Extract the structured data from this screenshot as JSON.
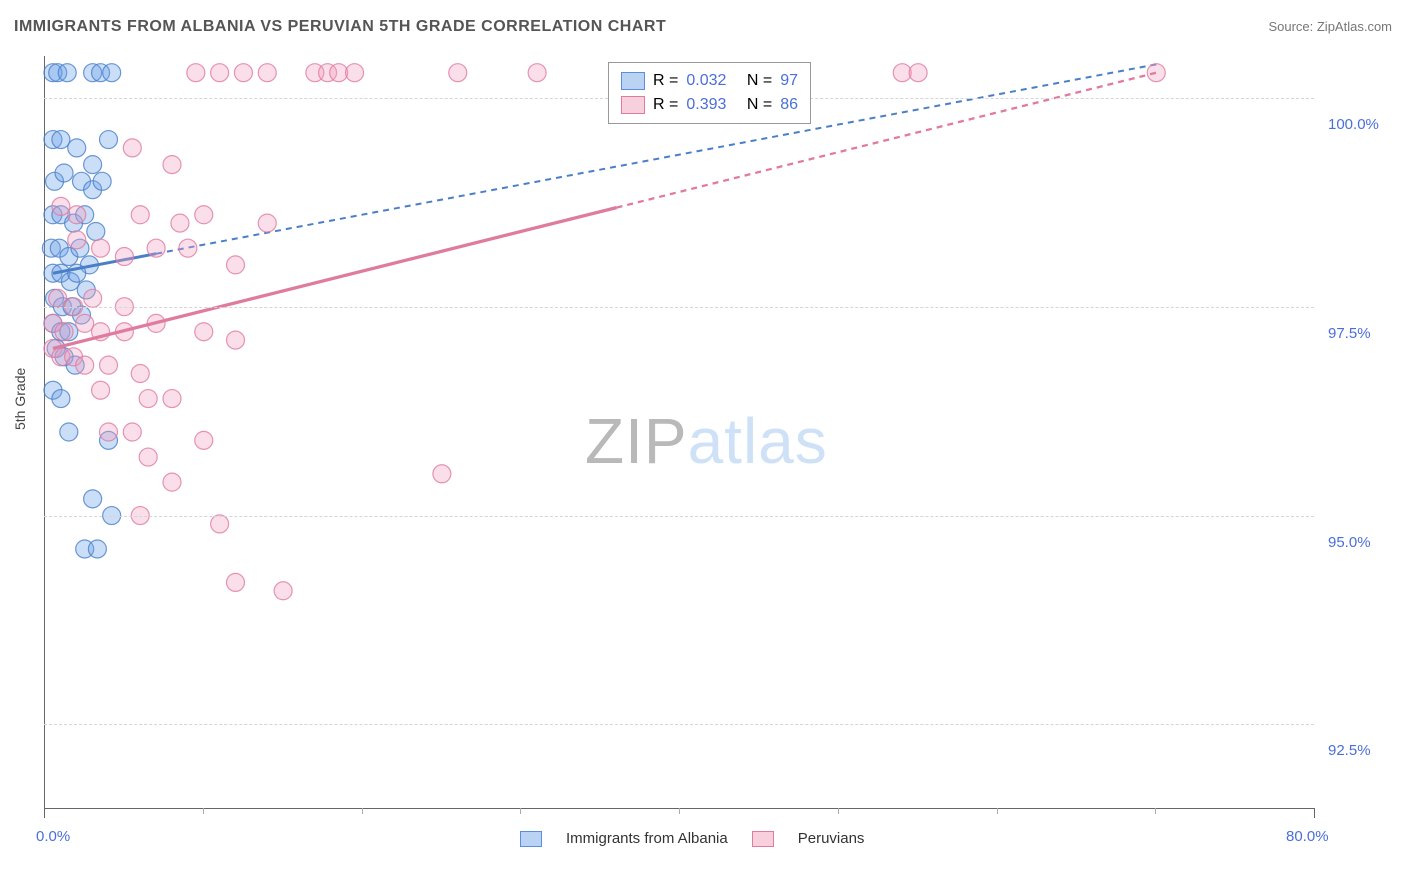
{
  "title": "IMMIGRANTS FROM ALBANIA VS PERUVIAN 5TH GRADE CORRELATION CHART",
  "source_label": "Source: ZipAtlas.com",
  "y_axis_label": "5th Grade",
  "watermark": {
    "part1": "ZIP",
    "part2": "atlas"
  },
  "chart": {
    "type": "scatter",
    "xlim": [
      0,
      80
    ],
    "ylim": [
      91.5,
      100.5
    ],
    "x_ticks_labeled": [
      0,
      80
    ],
    "x_tick_labels": [
      "0.0%",
      "80.0%"
    ],
    "x_minor_ticks": [
      10,
      20,
      30,
      40,
      50,
      60,
      70
    ],
    "y_ticks": [
      92.5,
      95.0,
      97.5,
      100.0
    ],
    "y_tick_labels": [
      "92.5%",
      "95.0%",
      "97.5%",
      "100.0%"
    ],
    "grid_color": "#d5d5d5",
    "axis_color": "#666666",
    "background_color": "#ffffff",
    "marker_radius": 9,
    "marker_fill_opacity": 0.35,
    "marker_stroke_opacity": 0.8,
    "series": [
      {
        "name": "Immigrants from Albania",
        "color": "#6aa0e8",
        "stroke": "#4a7fc8",
        "R": "0.032",
        "N": "97",
        "trend": {
          "x1": 0.5,
          "y1": 97.9,
          "x2": 70,
          "y2": 100.4,
          "dash": "6,5",
          "width": 2,
          "solid_until_x": 7
        },
        "points": [
          [
            0.5,
            100.3
          ],
          [
            0.8,
            100.3
          ],
          [
            1.4,
            100.3
          ],
          [
            3.0,
            100.3
          ],
          [
            3.5,
            100.3
          ],
          [
            4.2,
            100.3
          ],
          [
            0.5,
            99.5
          ],
          [
            1.0,
            99.5
          ],
          [
            2.0,
            99.4
          ],
          [
            3.0,
            99.2
          ],
          [
            4.0,
            99.5
          ],
          [
            0.6,
            99.0
          ],
          [
            1.2,
            99.1
          ],
          [
            2.3,
            99.0
          ],
          [
            3.0,
            98.9
          ],
          [
            3.6,
            99.0
          ],
          [
            0.5,
            98.6
          ],
          [
            1.0,
            98.6
          ],
          [
            1.8,
            98.5
          ],
          [
            2.5,
            98.6
          ],
          [
            3.2,
            98.4
          ],
          [
            0.4,
            98.2
          ],
          [
            0.9,
            98.2
          ],
          [
            1.5,
            98.1
          ],
          [
            2.2,
            98.2
          ],
          [
            2.8,
            98.0
          ],
          [
            0.5,
            97.9
          ],
          [
            1.0,
            97.9
          ],
          [
            1.6,
            97.8
          ],
          [
            2.0,
            97.9
          ],
          [
            2.6,
            97.7
          ],
          [
            0.6,
            97.6
          ],
          [
            1.1,
            97.5
          ],
          [
            1.7,
            97.5
          ],
          [
            2.3,
            97.4
          ],
          [
            0.5,
            97.3
          ],
          [
            1.0,
            97.2
          ],
          [
            1.5,
            97.2
          ],
          [
            0.7,
            97.0
          ],
          [
            1.2,
            96.9
          ],
          [
            1.9,
            96.8
          ],
          [
            0.5,
            96.5
          ],
          [
            1.0,
            96.4
          ],
          [
            1.5,
            96.0
          ],
          [
            4.0,
            95.9
          ],
          [
            3.0,
            95.2
          ],
          [
            4.2,
            95.0
          ],
          [
            2.5,
            94.6
          ],
          [
            3.3,
            94.6
          ]
        ]
      },
      {
        "name": "Peruvians",
        "color": "#f0a0c0",
        "stroke": "#e07ba0",
        "R": "0.393",
        "N": "86",
        "trend": {
          "x1": 0.5,
          "y1": 97.0,
          "x2": 70,
          "y2": 100.3,
          "dash": "6,5",
          "width": 2.3,
          "solid_until_x": 36
        },
        "points": [
          [
            9.5,
            100.3
          ],
          [
            11,
            100.3
          ],
          [
            12.5,
            100.3
          ],
          [
            14,
            100.3
          ],
          [
            17,
            100.3
          ],
          [
            17.8,
            100.3
          ],
          [
            18.5,
            100.3
          ],
          [
            19.5,
            100.3
          ],
          [
            26,
            100.3
          ],
          [
            31,
            100.3
          ],
          [
            40,
            100.3
          ],
          [
            41,
            100.3
          ],
          [
            54,
            100.3
          ],
          [
            55,
            100.3
          ],
          [
            70,
            100.3
          ],
          [
            5.5,
            99.4
          ],
          [
            8,
            99.2
          ],
          [
            1.0,
            98.7
          ],
          [
            2.0,
            98.6
          ],
          [
            6.0,
            98.6
          ],
          [
            8.5,
            98.5
          ],
          [
            10,
            98.6
          ],
          [
            14,
            98.5
          ],
          [
            2.0,
            98.3
          ],
          [
            3.5,
            98.2
          ],
          [
            5.0,
            98.1
          ],
          [
            7.0,
            98.2
          ],
          [
            9.0,
            98.2
          ],
          [
            12,
            98.0
          ],
          [
            0.8,
            97.6
          ],
          [
            1.8,
            97.5
          ],
          [
            3.0,
            97.6
          ],
          [
            5.0,
            97.5
          ],
          [
            0.5,
            97.3
          ],
          [
            1.2,
            97.2
          ],
          [
            2.5,
            97.3
          ],
          [
            3.5,
            97.2
          ],
          [
            5.0,
            97.2
          ],
          [
            7.0,
            97.3
          ],
          [
            10,
            97.2
          ],
          [
            12,
            97.1
          ],
          [
            0.5,
            97.0
          ],
          [
            1.0,
            96.9
          ],
          [
            1.8,
            96.9
          ],
          [
            2.5,
            96.8
          ],
          [
            4.0,
            96.8
          ],
          [
            6.0,
            96.7
          ],
          [
            3.5,
            96.5
          ],
          [
            6.5,
            96.4
          ],
          [
            8.0,
            96.4
          ],
          [
            4.0,
            96.0
          ],
          [
            5.5,
            96.0
          ],
          [
            10,
            95.9
          ],
          [
            6.5,
            95.7
          ],
          [
            8.0,
            95.4
          ],
          [
            25,
            95.5
          ],
          [
            6.0,
            95.0
          ],
          [
            11,
            94.9
          ],
          [
            12,
            94.2
          ],
          [
            15,
            94.1
          ]
        ]
      }
    ]
  },
  "stats_box": {
    "r_label": "R =",
    "n_label": "N ="
  },
  "legend": {
    "items": [
      {
        "swatch": "blue",
        "label": "Immigrants from Albania"
      },
      {
        "swatch": "pink",
        "label": "Peruvians"
      }
    ]
  }
}
